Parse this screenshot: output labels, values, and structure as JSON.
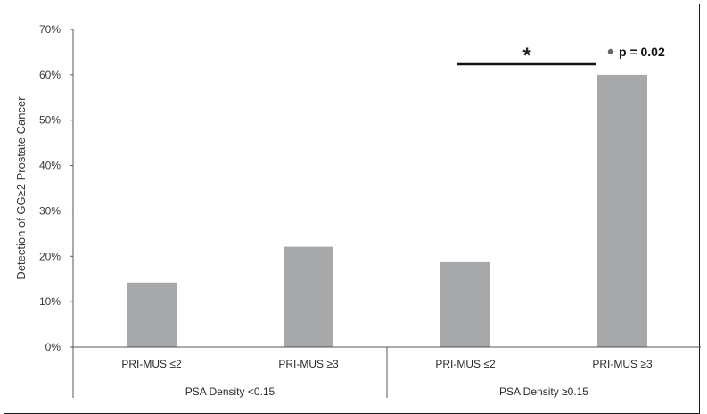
{
  "chart_data": {
    "type": "bar",
    "ylabel": "Detection of  GG≥2 Prostate Cancer",
    "ylim": [
      0,
      70
    ],
    "yticks": [
      "0%",
      "10%",
      "20%",
      "30%",
      "40%",
      "50%",
      "60%",
      "70%"
    ],
    "ytick_values": [
      0,
      10,
      20,
      30,
      40,
      50,
      60,
      70
    ],
    "grid": false,
    "categories": [
      "PRI-MUS ≤2",
      "PRI-MUS ≥3",
      "PRI-MUS ≤2",
      "PRI-MUS ≥3"
    ],
    "values": [
      14.2,
      22.1,
      18.7,
      60.0
    ],
    "groups": [
      {
        "label": "PSA Density <0.15",
        "categories": [
          0,
          1
        ]
      },
      {
        "label": "PSA Density ≥0.15",
        "categories": [
          2,
          3
        ]
      }
    ],
    "bar_color": "#a7a8aa",
    "annotation": {
      "significance_marker": "*",
      "p_value_text": "p = 0.02",
      "between_categories": [
        2,
        3
      ]
    }
  }
}
